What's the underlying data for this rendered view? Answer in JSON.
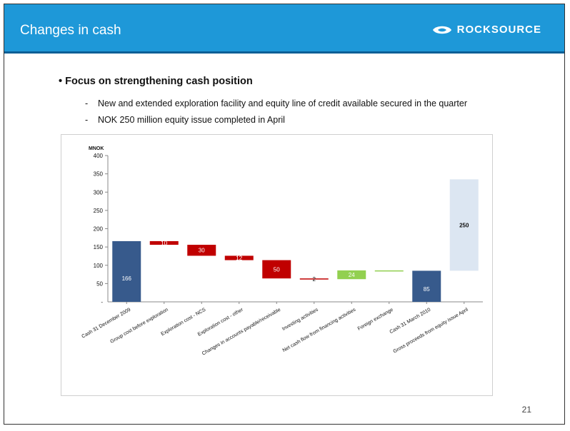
{
  "slide": {
    "title": "Changes in cash",
    "brand": "ROCKSOURCE",
    "bullet": "Focus on strengthening cash position",
    "sub_items": [
      "New and extended exploration facility and equity line of credit available secured in the quarter",
      "NOK 250 million equity issue completed in April"
    ],
    "page_number": "21"
  },
  "colors": {
    "header": "#1e98d8",
    "cash_bar": "#375a8c",
    "decrease": "#c00000",
    "increase": "#92d050",
    "equity": "#dce6f2"
  },
  "chart_data": {
    "type": "bar",
    "subtype": "waterfall",
    "ylabel": "MNOK",
    "ylim": [
      0,
      400
    ],
    "yticks": [
      50,
      100,
      150,
      200,
      250,
      300,
      350,
      400
    ],
    "zero_tick_label": "-",
    "grid": false,
    "categories": [
      "Cash 31 December 2009",
      "Group cost before exploration",
      "Exploration cost - NCS",
      "Exploration cost - other",
      "Changes in accounts payable/receivable",
      "Investing activities",
      "Net cash flow from financing activities",
      "Foreign exchange",
      "Cash 31 March 2010",
      "Gross proceeds from equity issue April"
    ],
    "bars": [
      {
        "kind": "total",
        "start": 0,
        "end": 166,
        "label": "166"
      },
      {
        "kind": "decrease",
        "start": 166,
        "end": 156,
        "label": "10"
      },
      {
        "kind": "decrease",
        "start": 156,
        "end": 126,
        "label": "30"
      },
      {
        "kind": "decrease",
        "start": 126,
        "end": 114,
        "label": "12"
      },
      {
        "kind": "decrease",
        "start": 114,
        "end": 64,
        "label": "50"
      },
      {
        "kind": "decrease",
        "start": 64,
        "end": 62,
        "label": "2"
      },
      {
        "kind": "increase",
        "start": 62,
        "end": 86,
        "label": "24"
      },
      {
        "kind": "increase",
        "start": 86,
        "end": 85,
        "label": ""
      },
      {
        "kind": "total",
        "start": 0,
        "end": 85,
        "label": "85"
      },
      {
        "kind": "equity",
        "start": 85,
        "end": 335,
        "label": "250"
      }
    ]
  }
}
